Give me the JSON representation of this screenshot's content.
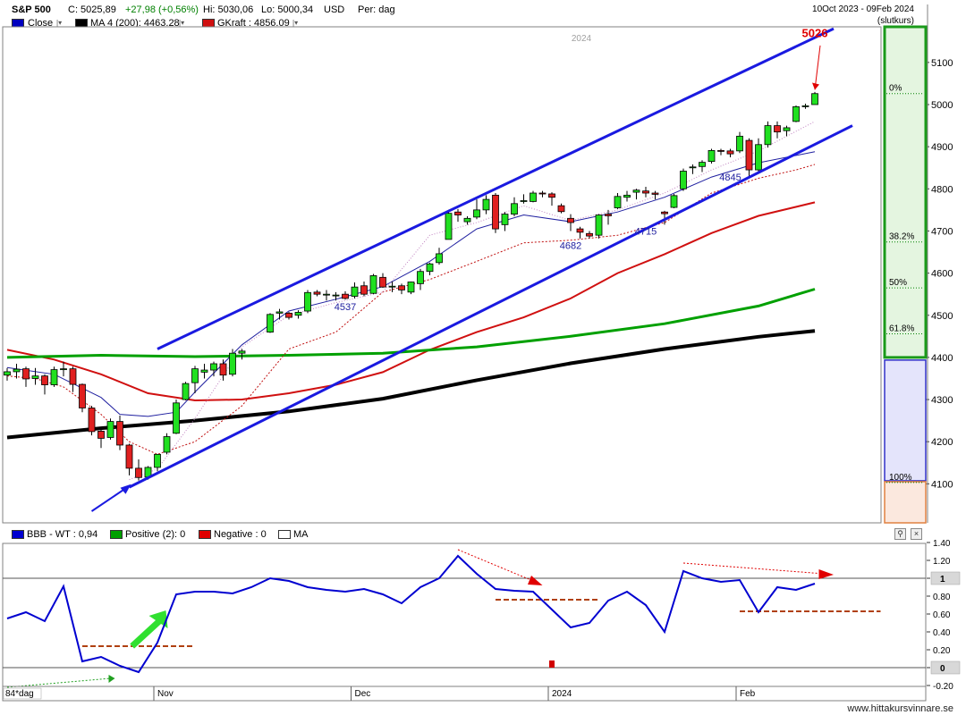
{
  "header": {
    "symbol": "S&P 500",
    "close": "C: 5025,89",
    "change": "+27,98 (+0,56%)",
    "high": "Hi: 5030,06",
    "low": "Lo: 5000,34",
    "currency": "USD",
    "period": "Per: dag",
    "date_range": "10Oct 2023 - 09Feb 2024",
    "close_type": "(slutkurs)"
  },
  "legend_main": [
    {
      "label": "Close",
      "color": "#0000c0"
    },
    {
      "label": "MA 4 (200): 4463.28",
      "color": "#000000"
    },
    {
      "label": "GKraft : 4856.09",
      "color": "#d01010"
    }
  ],
  "legend_lower": [
    {
      "label": "BBB - WT : 0,94",
      "color": "#0000d0"
    },
    {
      "label": "Positive (2): 0",
      "color": "#00a000"
    },
    {
      "label": "Negative : 0",
      "color": "#e00000"
    },
    {
      "label": "MA",
      "color": "#ffffff"
    }
  ],
  "year_label": "2024",
  "x_labels": [
    {
      "label": "84*dag",
      "x": 0
    },
    {
      "label": "Nov",
      "x": 16
    },
    {
      "label": "Dec",
      "x": 37
    },
    {
      "label": "2024",
      "x": 58
    },
    {
      "label": "Feb",
      "x": 78
    }
  ],
  "annotations": [
    {
      "label": "5026",
      "x": 86,
      "y": 5160,
      "color": "#e00000"
    },
    {
      "label": "4537",
      "x": 36,
      "y": 4512,
      "color": "#2020a0"
    },
    {
      "label": "4682",
      "x": 60,
      "y": 4658,
      "color": "#2020a0"
    },
    {
      "label": "4715",
      "x": 68,
      "y": 4691,
      "color": "#2020a0"
    },
    {
      "label": "4845",
      "x": 77,
      "y": 4820,
      "color": "#2020a0"
    }
  ],
  "fib_levels": [
    {
      "label": "0%",
      "value": 5026
    },
    {
      "label": "38.2%",
      "value": 4674
    },
    {
      "label": "50%",
      "value": 4565
    },
    {
      "label": "61.8%",
      "value": 4456
    },
    {
      "label": "100%",
      "value": 4103
    }
  ],
  "footer": "www.hittakursvinnare.se",
  "chart_data": [
    {
      "type": "candlestick",
      "title": "S&P 500",
      "ylim": [
        4000,
        5200
      ],
      "y_ticks": [
        4100,
        4200,
        4300,
        4400,
        4500,
        4600,
        4700,
        4800,
        4900,
        5000,
        5100
      ],
      "x_index_range": [
        0,
        92
      ],
      "candles": [
        [
          4358,
          4375,
          4345,
          4366
        ],
        [
          4366,
          4385,
          4350,
          4372
        ],
        [
          4373,
          4378,
          4330,
          4349
        ],
        [
          4350,
          4375,
          4335,
          4356
        ],
        [
          4356,
          4360,
          4312,
          4335
        ],
        [
          4335,
          4378,
          4330,
          4371
        ],
        [
          4372,
          4390,
          4355,
          4373
        ],
        [
          4373,
          4378,
          4318,
          4336
        ],
        [
          4336,
          4338,
          4270,
          4280
        ],
        [
          4280,
          4285,
          4215,
          4224
        ],
        [
          4225,
          4232,
          4185,
          4208
        ],
        [
          4210,
          4255,
          4205,
          4248
        ],
        [
          4248,
          4262,
          4180,
          4192
        ],
        [
          4192,
          4195,
          4120,
          4137
        ],
        [
          4137,
          4158,
          4108,
          4115
        ],
        [
          4116,
          4142,
          4110,
          4139
        ],
        [
          4139,
          4170,
          4130,
          4170
        ],
        [
          4175,
          4220,
          4170,
          4212
        ],
        [
          4220,
          4300,
          4218,
          4292
        ],
        [
          4300,
          4342,
          4298,
          4338
        ],
        [
          4340,
          4380,
          4315,
          4373
        ],
        [
          4365,
          4385,
          4350,
          4370
        ],
        [
          4370,
          4390,
          4355,
          4385
        ],
        [
          4385,
          4395,
          4345,
          4358
        ],
        [
          4360,
          4420,
          4355,
          4410
        ],
        [
          4410,
          4420,
          4395,
          4415
        ],
        [
          4460,
          4505,
          4458,
          4502
        ],
        [
          4505,
          4515,
          4490,
          4508
        ],
        [
          4505,
          4508,
          4490,
          4495
        ],
        [
          4500,
          4512,
          4492,
          4507
        ],
        [
          4510,
          4560,
          4505,
          4554
        ],
        [
          4555,
          4560,
          4545,
          4550
        ],
        [
          4550,
          4560,
          4535,
          4550
        ],
        [
          4547,
          4555,
          4535,
          4548
        ],
        [
          4550,
          4557,
          4537,
          4540
        ],
        [
          4545,
          4578,
          4540,
          4567
        ],
        [
          4570,
          4580,
          4545,
          4550
        ],
        [
          4552,
          4598,
          4550,
          4594
        ],
        [
          4590,
          4600,
          4565,
          4567
        ],
        [
          4567,
          4580,
          4555,
          4569
        ],
        [
          4570,
          4575,
          4550,
          4560
        ],
        [
          4555,
          4580,
          4550,
          4579
        ],
        [
          4575,
          4610,
          4560,
          4604
        ],
        [
          4604,
          4625,
          4595,
          4622
        ],
        [
          4625,
          4660,
          4620,
          4646
        ],
        [
          4680,
          4750,
          4680,
          4742
        ],
        [
          4745,
          4752,
          4722,
          4738
        ],
        [
          4722,
          4735,
          4715,
          4730
        ],
        [
          4733,
          4775,
          4728,
          4750
        ],
        [
          4750,
          4785,
          4740,
          4775
        ],
        [
          4785,
          4790,
          4695,
          4705
        ],
        [
          4715,
          4745,
          4700,
          4740
        ],
        [
          4740,
          4780,
          4735,
          4765
        ],
        [
          4770,
          4787,
          4765,
          4772
        ],
        [
          4770,
          4795,
          4768,
          4790
        ],
        [
          4790,
          4795,
          4780,
          4788
        ],
        [
          4788,
          4792,
          4760,
          4780
        ],
        [
          4760,
          4765,
          4742,
          4746
        ],
        [
          4730,
          4740,
          4700,
          4720
        ],
        [
          4705,
          4710,
          4682,
          4697
        ],
        [
          4694,
          4700,
          4683,
          4688
        ],
        [
          4690,
          4740,
          4682,
          4738
        ],
        [
          4740,
          4750,
          4715,
          4736
        ],
        [
          4755,
          4790,
          4752,
          4782
        ],
        [
          4780,
          4795,
          4770,
          4785
        ],
        [
          4792,
          4800,
          4775,
          4797
        ],
        [
          4795,
          4805,
          4780,
          4790
        ],
        [
          4790,
          4795,
          4775,
          4787
        ],
        [
          4745,
          4748,
          4715,
          4741
        ],
        [
          4756,
          4788,
          4754,
          4784
        ],
        [
          4800,
          4848,
          4795,
          4842
        ],
        [
          4850,
          4858,
          4835,
          4852
        ],
        [
          4853,
          4868,
          4840,
          4863
        ],
        [
          4865,
          4895,
          4860,
          4891
        ],
        [
          4891,
          4895,
          4880,
          4890
        ],
        [
          4890,
          4895,
          4875,
          4883
        ],
        [
          4890,
          4935,
          4885,
          4925
        ],
        [
          4915,
          4920,
          4830,
          4845
        ],
        [
          4845,
          4920,
          4840,
          4905
        ],
        [
          4905,
          4960,
          4898,
          4950
        ],
        [
          4950,
          4960,
          4920,
          4935
        ],
        [
          4938,
          4950,
          4925,
          4945
        ],
        [
          4960,
          4998,
          4958,
          4995
        ],
        [
          4995,
          5002,
          4990,
          4997
        ],
        [
          5000,
          5030,
          5000,
          5026
        ]
      ],
      "candle_x": [
        0,
        1,
        2,
        3,
        4,
        5,
        6,
        7,
        8,
        9,
        10,
        11,
        12,
        13,
        14,
        15,
        16,
        17,
        18,
        19,
        20,
        21,
        22,
        23,
        24,
        25,
        28,
        29,
        30,
        31,
        32,
        33,
        34,
        35,
        36,
        37,
        38,
        39,
        40,
        41,
        42,
        43,
        44,
        45,
        46,
        47,
        48,
        49,
        50,
        51,
        52,
        53,
        54,
        55,
        56,
        57,
        58,
        59,
        60,
        61,
        62,
        63,
        64,
        65,
        66,
        67,
        68,
        69,
        70,
        71,
        72,
        73,
        74,
        75,
        76,
        77,
        78,
        79,
        80,
        81,
        82,
        83,
        84,
        85,
        86
      ],
      "series": [
        {
          "name": "MA 4 (200)",
          "color": "#000000",
          "width": 4,
          "x": [
            0,
            10,
            20,
            30,
            40,
            50,
            60,
            70,
            80,
            86
          ],
          "values": [
            4210,
            4232,
            4250,
            4272,
            4302,
            4346,
            4386,
            4420,
            4449,
            4463
          ]
        },
        {
          "name": "GKraft",
          "color": "#d01010",
          "width": 2,
          "x": [
            0,
            5,
            10,
            15,
            20,
            25,
            30,
            35,
            40,
            45,
            50,
            55,
            60,
            65,
            70,
            75,
            80,
            86
          ],
          "values": [
            4418,
            4395,
            4360,
            4315,
            4298,
            4300,
            4315,
            4335,
            4365,
            4418,
            4460,
            4495,
            4540,
            4600,
            4645,
            4695,
            4736,
            4768
          ]
        },
        {
          "name": "",
          "color": "#00a000",
          "width": 3,
          "x": [
            0,
            10,
            20,
            30,
            40,
            50,
            60,
            70,
            80,
            86
          ],
          "values": [
            4400,
            4405,
            4402,
            4405,
            4410,
            4425,
            4450,
            4480,
            4522,
            4562
          ]
        },
        {
          "name": "",
          "color": "#2020a0",
          "width": 1,
          "x": [
            0,
            5,
            10,
            12,
            15,
            18,
            20,
            25,
            30,
            35,
            40,
            45,
            50,
            55,
            60,
            65,
            70,
            75,
            80,
            86
          ],
          "values": [
            4376,
            4360,
            4305,
            4265,
            4260,
            4270,
            4318,
            4430,
            4510,
            4538,
            4568,
            4628,
            4705,
            4738,
            4722,
            4745,
            4780,
            4828,
            4862,
            4888
          ]
        },
        {
          "name": "",
          "color": "#c01010",
          "width": 1,
          "dash": "2,2",
          "x": [
            0,
            3,
            6,
            10,
            13,
            16,
            20,
            25,
            30,
            35,
            40,
            45,
            50,
            55,
            60,
            65,
            70,
            75,
            80,
            84,
            86
          ],
          "values": [
            4356,
            4350,
            4330,
            4265,
            4200,
            4170,
            4200,
            4285,
            4420,
            4460,
            4555,
            4585,
            4628,
            4672,
            4678,
            4690,
            4720,
            4790,
            4825,
            4845,
            4858
          ]
        },
        {
          "name": "",
          "color": "#c080c0",
          "width": 1,
          "dash": "1,2",
          "x": [
            13,
            16,
            20,
            25,
            30,
            35,
            40,
            45,
            50,
            55,
            60,
            65,
            70,
            75,
            80,
            86
          ],
          "values": [
            4110,
            4135,
            4255,
            4425,
            4500,
            4530,
            4555,
            4690,
            4720,
            4760,
            4725,
            4750,
            4790,
            4845,
            4890,
            4960
          ]
        }
      ],
      "trend_lines": [
        {
          "color": "#1a1ae0",
          "width": 3,
          "x1": 16,
          "y1": 4420,
          "x2": 88,
          "y2": 5180
        },
        {
          "color": "#1a1ae0",
          "width": 3,
          "x1": 13,
          "y1": 4092,
          "x2": 90,
          "y2": 4950
        },
        {
          "color": "#1a1ae0",
          "width": 2,
          "x1": 9,
          "y1": 4035,
          "x2": 13,
          "y2": 4095
        }
      ]
    },
    {
      "type": "line",
      "title": "BBB - WT",
      "ylim": [
        -0.3,
        1.5
      ],
      "y_ticks": [
        -0.2,
        0,
        0.2,
        0.4,
        0.6,
        0.8,
        1.0,
        1.2,
        1.4
      ],
      "y_tick_labels": [
        "-0.20",
        "0",
        "0.20",
        "0.40",
        "0.60",
        "0.80",
        "1",
        "1.20",
        "1.40"
      ],
      "series": [
        {
          "name": "BBB - WT",
          "color": "#0000d0",
          "x": [
            0,
            2,
            4,
            6,
            8,
            10,
            12,
            14,
            16,
            18,
            20,
            22,
            24,
            26,
            28,
            30,
            32,
            34,
            36,
            38,
            40,
            42,
            44,
            46,
            48,
            50,
            52,
            54,
            56,
            58,
            60,
            62,
            64,
            66,
            68,
            70,
            72,
            74,
            76,
            78,
            80,
            82,
            84,
            86
          ],
          "values": [
            0.55,
            0.62,
            0.52,
            0.91,
            0.07,
            0.12,
            0.02,
            -0.05,
            0.28,
            0.82,
            0.85,
            0.85,
            0.83,
            0.9,
            1.0,
            0.97,
            0.9,
            0.87,
            0.85,
            0.88,
            0.82,
            0.72,
            0.9,
            1.0,
            1.25,
            1.05,
            0.88,
            0.86,
            0.85,
            0.65,
            0.45,
            0.5,
            0.75,
            0.85,
            0.7,
            0.4,
            1.08,
            1.0,
            0.96,
            0.98,
            0.62,
            0.9,
            0.87,
            0.94
          ]
        }
      ],
      "bars": [
        {
          "x": 58,
          "value": 0.08,
          "color": "#d00000"
        }
      ]
    }
  ]
}
